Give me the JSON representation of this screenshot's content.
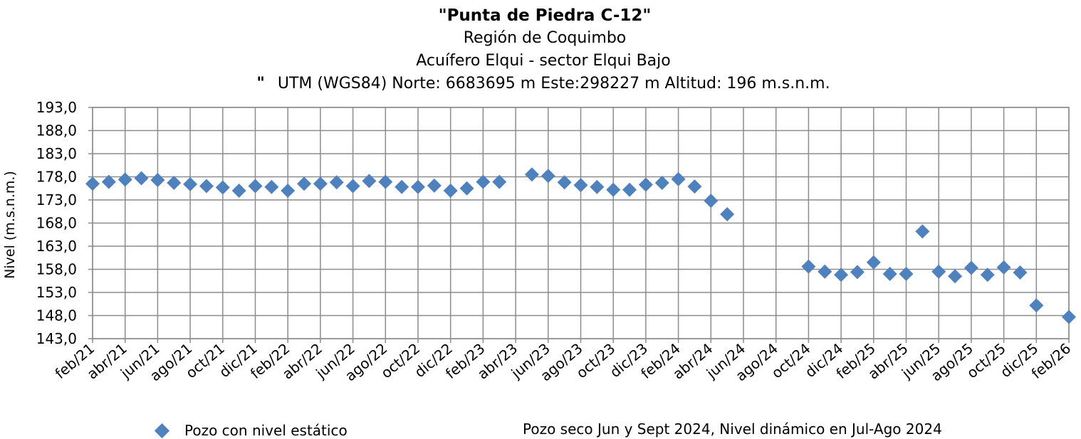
{
  "chart_data": {
    "type": "scatter",
    "title": "\"Punta de Piedra C-12\"",
    "subtitle_1": "Región de Coquimbo",
    "subtitle_2": "Acuífero Elqui - sector Elqui Bajo",
    "subtitle_quote": "\"",
    "subtitle_3": "UTM (WGS84) Norte: 6683695 m   Este:298227 m   Altitud: 196 m.s.n.m.",
    "ylabel": "Nivel (m.s.n.m.)",
    "xlabel": "",
    "ylim": [
      143,
      193
    ],
    "yticks": [
      "193,0",
      "188,0",
      "183,0",
      "178,0",
      "173,0",
      "168,0",
      "163,0",
      "158,0",
      "153,0",
      "148,0",
      "143,0"
    ],
    "xlim": [
      "2021-02",
      "2026-02"
    ],
    "xticks": [
      "feb/21",
      "abr/21",
      "jun/21",
      "ago/21",
      "oct/21",
      "dic/21",
      "feb/22",
      "abr/22",
      "jun/22",
      "ago/22",
      "oct/22",
      "dic/22",
      "feb/23",
      "abr/23",
      "jun/23",
      "ago/23",
      "oct/23",
      "dic/23",
      "feb/24",
      "abr/24",
      "jun/24",
      "ago/24",
      "oct/24",
      "dic/24",
      "feb/25",
      "abr/25",
      "jun/25",
      "ago/25",
      "oct/25",
      "dic/25",
      "feb/26"
    ],
    "grid": true,
    "legend_position": "bottom-left",
    "series": [
      {
        "name": "Pozo con nivel estático",
        "color": "#4F81BD",
        "marker": "diamond",
        "x": [
          "2021-02",
          "2021-03",
          "2021-04",
          "2021-05",
          "2021-06",
          "2021-07",
          "2021-08",
          "2021-09",
          "2021-10",
          "2021-11",
          "2021-12",
          "2022-01",
          "2022-02",
          "2022-03",
          "2022-04",
          "2022-05",
          "2022-06",
          "2022-07",
          "2022-08",
          "2022-09",
          "2022-10",
          "2022-11",
          "2022-12",
          "2023-01",
          "2023-02",
          "2023-03",
          "2023-05",
          "2023-06",
          "2023-07",
          "2023-08",
          "2023-09",
          "2023-10",
          "2023-11",
          "2023-12",
          "2024-01",
          "2024-02",
          "2024-03",
          "2024-04",
          "2024-05",
          "2024-10",
          "2024-11",
          "2024-12",
          "2025-01",
          "2025-02",
          "2025-03",
          "2025-04",
          "2025-05",
          "2025-06",
          "2025-07",
          "2025-08",
          "2025-09",
          "2025-10",
          "2025-11",
          "2025-12",
          "2026-02"
        ],
        "y": [
          176.5,
          176.9,
          177.4,
          177.7,
          177.3,
          176.7,
          176.4,
          176.0,
          175.7,
          175.0,
          176.0,
          175.8,
          175.0,
          176.5,
          176.5,
          176.8,
          176.0,
          177.1,
          176.9,
          175.8,
          175.8,
          176.1,
          175.0,
          175.5,
          176.9,
          176.9,
          178.5,
          178.2,
          176.8,
          176.2,
          175.8,
          175.2,
          175.2,
          176.3,
          176.7,
          177.5,
          175.9,
          172.8,
          169.9,
          158.6,
          157.5,
          156.8,
          157.4,
          159.5,
          157.0,
          157.0,
          166.2,
          157.5,
          156.5,
          158.3,
          156.8,
          158.4,
          157.3,
          150.2,
          147.7
        ]
      }
    ],
    "note": "Pozo seco Jun y Sept 2024, Nivel dinámico en Jul-Ago 2024"
  }
}
